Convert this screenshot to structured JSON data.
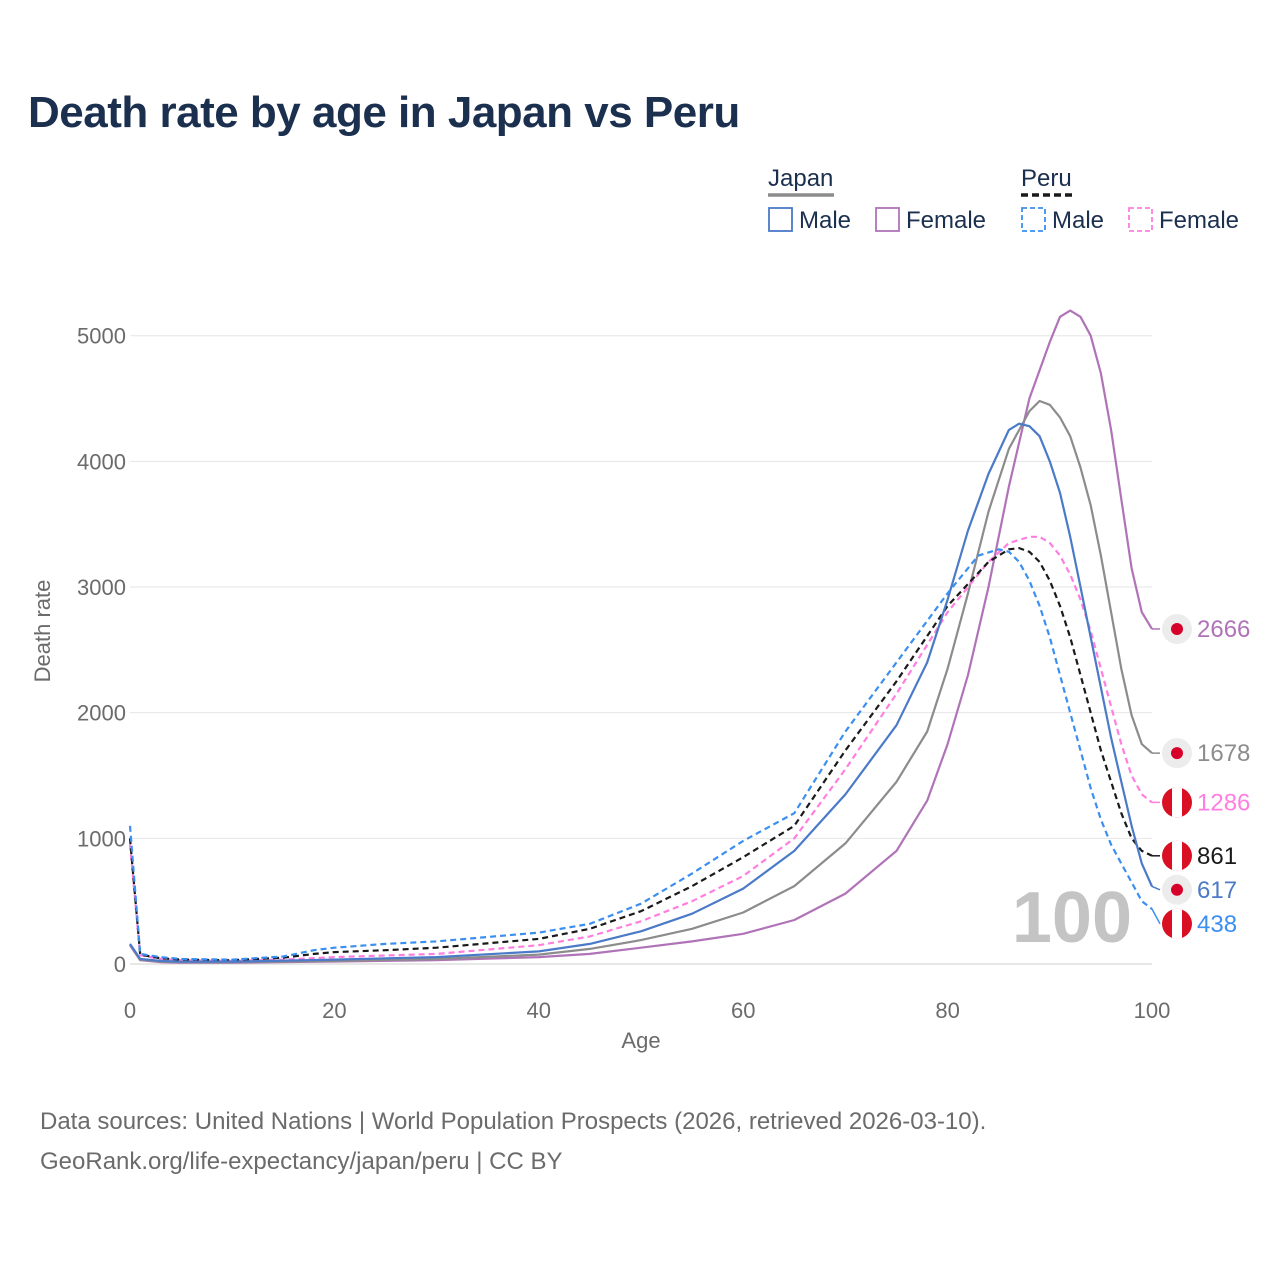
{
  "title": "Death rate by age in Japan vs Peru",
  "legend": {
    "groups": [
      {
        "name": "Japan",
        "color": "#8c8c8c",
        "dashed": false
      },
      {
        "name": "Peru",
        "color": "#1a1a1a",
        "dashed": true
      }
    ],
    "items": [
      {
        "label": "Male",
        "color": "#4a7ac8",
        "dashed": false
      },
      {
        "label": "Female",
        "color": "#b073b8",
        "dashed": false
      },
      {
        "label": "Male",
        "color": "#3b8ff0",
        "dashed": true
      },
      {
        "label": "Female",
        "color": "#ff7ee0",
        "dashed": true
      }
    ]
  },
  "chart_data": {
    "type": "line",
    "xlabel": "Age",
    "ylabel": "Death rate",
    "xlim": [
      0,
      100
    ],
    "ylim": [
      0,
      5300
    ],
    "xticks": [
      0,
      20,
      40,
      60,
      80,
      100
    ],
    "yticks": [
      0,
      1000,
      2000,
      3000,
      4000,
      5000
    ],
    "grid": true,
    "year_watermark": "100",
    "series": [
      {
        "name": "Japan Female",
        "color": "#b073b8",
        "dashed": false,
        "end_label": "2666",
        "flag": "japan",
        "points": [
          [
            0,
            150
          ],
          [
            1,
            30
          ],
          [
            3,
            15
          ],
          [
            5,
            10
          ],
          [
            10,
            10
          ],
          [
            20,
            20
          ],
          [
            30,
            30
          ],
          [
            40,
            55
          ],
          [
            45,
            80
          ],
          [
            50,
            130
          ],
          [
            55,
            180
          ],
          [
            60,
            240
          ],
          [
            65,
            350
          ],
          [
            70,
            560
          ],
          [
            75,
            900
          ],
          [
            78,
            1300
          ],
          [
            80,
            1750
          ],
          [
            82,
            2300
          ],
          [
            84,
            3000
          ],
          [
            86,
            3800
          ],
          [
            88,
            4500
          ],
          [
            90,
            4950
          ],
          [
            91,
            5150
          ],
          [
            92,
            5200
          ],
          [
            93,
            5150
          ],
          [
            94,
            5000
          ],
          [
            95,
            4700
          ],
          [
            96,
            4250
          ],
          [
            97,
            3700
          ],
          [
            98,
            3150
          ],
          [
            99,
            2800
          ],
          [
            100,
            2666
          ]
        ]
      },
      {
        "name": "Japan Both",
        "color": "#8c8c8c",
        "dashed": false,
        "end_label": "1678",
        "flag": "japan",
        "points": [
          [
            0,
            155
          ],
          [
            1,
            35
          ],
          [
            3,
            20
          ],
          [
            5,
            15
          ],
          [
            10,
            15
          ],
          [
            20,
            25
          ],
          [
            30,
            40
          ],
          [
            40,
            75
          ],
          [
            45,
            120
          ],
          [
            50,
            190
          ],
          [
            55,
            280
          ],
          [
            60,
            410
          ],
          [
            65,
            620
          ],
          [
            70,
            960
          ],
          [
            75,
            1450
          ],
          [
            78,
            1850
          ],
          [
            80,
            2350
          ],
          [
            82,
            2950
          ],
          [
            84,
            3600
          ],
          [
            86,
            4100
          ],
          [
            88,
            4400
          ],
          [
            89,
            4480
          ],
          [
            90,
            4450
          ],
          [
            91,
            4350
          ],
          [
            92,
            4200
          ],
          [
            93,
            3950
          ],
          [
            94,
            3650
          ],
          [
            95,
            3250
          ],
          [
            96,
            2800
          ],
          [
            97,
            2350
          ],
          [
            98,
            1980
          ],
          [
            99,
            1750
          ],
          [
            100,
            1678
          ]
        ]
      },
      {
        "name": "Peru Female",
        "color": "#ff7ee0",
        "dashed": true,
        "end_label": "1286",
        "flag": "peru",
        "points": [
          [
            0,
            950
          ],
          [
            1,
            70
          ],
          [
            3,
            40
          ],
          [
            5,
            30
          ],
          [
            10,
            25
          ],
          [
            15,
            35
          ],
          [
            20,
            55
          ],
          [
            30,
            80
          ],
          [
            40,
            150
          ],
          [
            45,
            220
          ],
          [
            50,
            340
          ],
          [
            55,
            500
          ],
          [
            60,
            700
          ],
          [
            65,
            1000
          ],
          [
            70,
            1550
          ],
          [
            75,
            2150
          ],
          [
            80,
            2800
          ],
          [
            84,
            3200
          ],
          [
            86,
            3350
          ],
          [
            88,
            3400
          ],
          [
            89,
            3400
          ],
          [
            90,
            3350
          ],
          [
            91,
            3250
          ],
          [
            92,
            3100
          ],
          [
            93,
            2900
          ],
          [
            94,
            2650
          ],
          [
            95,
            2350
          ],
          [
            96,
            2050
          ],
          [
            97,
            1750
          ],
          [
            98,
            1500
          ],
          [
            99,
            1350
          ],
          [
            100,
            1286
          ]
        ]
      },
      {
        "name": "Peru Both",
        "color": "#1a1a1a",
        "dashed": true,
        "end_label": "861",
        "flag": "peru",
        "points": [
          [
            0,
            1000
          ],
          [
            1,
            75
          ],
          [
            3,
            45
          ],
          [
            5,
            35
          ],
          [
            10,
            30
          ],
          [
            15,
            50
          ],
          [
            18,
            80
          ],
          [
            20,
            95
          ],
          [
            25,
            110
          ],
          [
            30,
            130
          ],
          [
            40,
            200
          ],
          [
            45,
            280
          ],
          [
            50,
            420
          ],
          [
            55,
            620
          ],
          [
            60,
            850
          ],
          [
            65,
            1100
          ],
          [
            70,
            1700
          ],
          [
            75,
            2250
          ],
          [
            80,
            2850
          ],
          [
            84,
            3200
          ],
          [
            86,
            3300
          ],
          [
            87,
            3310
          ],
          [
            88,
            3280
          ],
          [
            89,
            3200
          ],
          [
            90,
            3050
          ],
          [
            91,
            2850
          ],
          [
            92,
            2600
          ],
          [
            93,
            2300
          ],
          [
            94,
            2000
          ],
          [
            95,
            1700
          ],
          [
            96,
            1450
          ],
          [
            97,
            1200
          ],
          [
            98,
            1000
          ],
          [
            99,
            900
          ],
          [
            100,
            861
          ]
        ]
      },
      {
        "name": "Japan Male",
        "color": "#4a7ac8",
        "dashed": false,
        "end_label": "617",
        "flag": "japan",
        "points": [
          [
            0,
            160
          ],
          [
            1,
            40
          ],
          [
            3,
            25
          ],
          [
            5,
            18
          ],
          [
            10,
            18
          ],
          [
            20,
            35
          ],
          [
            30,
            55
          ],
          [
            40,
            100
          ],
          [
            45,
            160
          ],
          [
            50,
            260
          ],
          [
            55,
            400
          ],
          [
            60,
            600
          ],
          [
            65,
            900
          ],
          [
            70,
            1350
          ],
          [
            75,
            1900
          ],
          [
            78,
            2400
          ],
          [
            80,
            2900
          ],
          [
            82,
            3450
          ],
          [
            84,
            3900
          ],
          [
            86,
            4250
          ],
          [
            87,
            4300
          ],
          [
            88,
            4280
          ],
          [
            89,
            4200
          ],
          [
            90,
            4000
          ],
          [
            91,
            3750
          ],
          [
            92,
            3400
          ],
          [
            93,
            3000
          ],
          [
            94,
            2600
          ],
          [
            95,
            2200
          ],
          [
            96,
            1800
          ],
          [
            97,
            1450
          ],
          [
            98,
            1100
          ],
          [
            99,
            800
          ],
          [
            100,
            617
          ]
        ]
      },
      {
        "name": "Peru Male",
        "color": "#3b8ff0",
        "dashed": true,
        "end_label": "438",
        "flag": "peru",
        "points": [
          [
            0,
            1100
          ],
          [
            1,
            80
          ],
          [
            3,
            55
          ],
          [
            5,
            40
          ],
          [
            10,
            35
          ],
          [
            15,
            60
          ],
          [
            18,
            110
          ],
          [
            20,
            130
          ],
          [
            25,
            160
          ],
          [
            30,
            180
          ],
          [
            40,
            250
          ],
          [
            45,
            320
          ],
          [
            50,
            480
          ],
          [
            55,
            720
          ],
          [
            60,
            980
          ],
          [
            65,
            1200
          ],
          [
            70,
            1850
          ],
          [
            75,
            2400
          ],
          [
            80,
            2950
          ],
          [
            83,
            3250
          ],
          [
            85,
            3300
          ],
          [
            86,
            3280
          ],
          [
            87,
            3200
          ],
          [
            88,
            3050
          ],
          [
            89,
            2850
          ],
          [
            90,
            2600
          ],
          [
            91,
            2300
          ],
          [
            92,
            2000
          ],
          [
            93,
            1700
          ],
          [
            94,
            1400
          ],
          [
            95,
            1150
          ],
          [
            96,
            950
          ],
          [
            97,
            800
          ],
          [
            98,
            650
          ],
          [
            99,
            500
          ],
          [
            100,
            438
          ]
        ]
      }
    ]
  },
  "source_line1": "Data sources: United Nations | World Population Prospects (2026, retrieved 2026-03-10).",
  "source_line2": "GeoRank.org/life-expectancy/japan/peru | CC BY"
}
